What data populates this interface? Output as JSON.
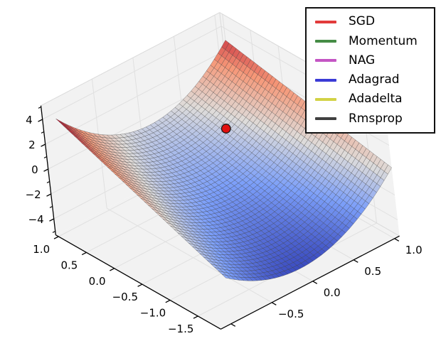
{
  "chart_data": {
    "type": "surface",
    "title": "",
    "description": "3D saddle surface (coolwarm colormap, dark wireframe mesh) with red start-point marker; gradient-descent optimizer comparison figure",
    "legend": {
      "position": "upper right",
      "entries": [
        {
          "label": "SGD",
          "color": "#e23b3b"
        },
        {
          "label": "Momentum",
          "color": "#468c46"
        },
        {
          "label": "NAG",
          "color": "#c455c4"
        },
        {
          "label": "Adagrad",
          "color": "#3b3bd6"
        },
        {
          "label": "Adadelta",
          "color": "#d2d245"
        },
        {
          "label": "Rmsprop",
          "color": "#404040"
        }
      ]
    },
    "axes": {
      "x": {
        "tick_values": [
          1.0,
          0.5,
          0.0,
          -0.5,
          -1.0,
          -1.5
        ],
        "tick_labels": [
          "1.0",
          "0.5",
          "0.0",
          "−0.5",
          "−1.0",
          "−1.5"
        ],
        "lim": [
          -1.91,
          1.05
        ],
        "inverted_display": true
      },
      "y": {
        "tick_values": [
          -0.5,
          0.0,
          0.5,
          1.0
        ],
        "tick_labels": [
          "−0.5",
          "0.0",
          "0.5",
          "1.0"
        ],
        "minor_tick_values": [
          -1.0
        ],
        "lim": [
          -1.125,
          1.06
        ]
      },
      "z": {
        "tick_values": [
          4,
          2,
          0,
          -2,
          -4
        ],
        "tick_labels": [
          "4",
          "2",
          "0",
          "−2",
          "−4"
        ],
        "minor_tick_values": [
          5,
          3,
          1,
          -1,
          -3,
          -5
        ],
        "lim": [
          -5.3,
          5.1
        ]
      },
      "grid": true
    },
    "surface": {
      "z_function": "z = L(s) + M(s)*y + Q(s)*y^2 with s=(x+1.91)/2.91, L=-3.8+3.37s, M=0.70-1.28s, Q=2.9+0.7s (saddle: high red ridge at back, deep blue bowl at front)",
      "coeffs": {
        "L": [
          -3.8,
          3.37
        ],
        "M": [
          0.7,
          -1.28
        ],
        "Q": [
          2.9,
          0.7
        ]
      },
      "x_domain": [
        -1.91,
        1.0
      ],
      "y_domain": [
        -1.0,
        1.06
      ],
      "grid_steps": [
        46,
        40
      ],
      "colormap": "coolwarm",
      "colormap_stops": [
        [
          0.0,
          [
            59,
            76,
            192
          ]
        ],
        [
          0.25,
          [
            124,
            159,
            249
          ]
        ],
        [
          0.5,
          [
            222,
            220,
            218
          ]
        ],
        [
          0.75,
          [
            246,
            152,
            120
          ]
        ],
        [
          1.0,
          [
            180,
            4,
            38
          ]
        ]
      ],
      "color_norm": [
        -3.84,
        3.8
      ],
      "edge_color": "#3a3a3a",
      "edge_opacity": 0.6
    },
    "start_point": {
      "x": 0.25,
      "y": 0.5,
      "z_offset": 0.3,
      "radius": 6.3,
      "fill": "#e11010",
      "edge": "#1a1a1a"
    },
    "projection": {
      "origin": [
        279.4,
        217.5
      ],
      "ex": [
        -78.4,
        -44.8
      ],
      "ey": [
        115,
        -60
      ],
      "ez": [
        -2,
        -17.5
      ],
      "depth_weights": [
        0.65,
        0.65,
        -0.38
      ]
    },
    "style": {
      "background": "#ffffff",
      "pane_color": "#f2f2f2",
      "pane_grid_color": "#e0e0e0",
      "pane_edge_color": "#dadada",
      "spine_color": "#000000"
    }
  }
}
